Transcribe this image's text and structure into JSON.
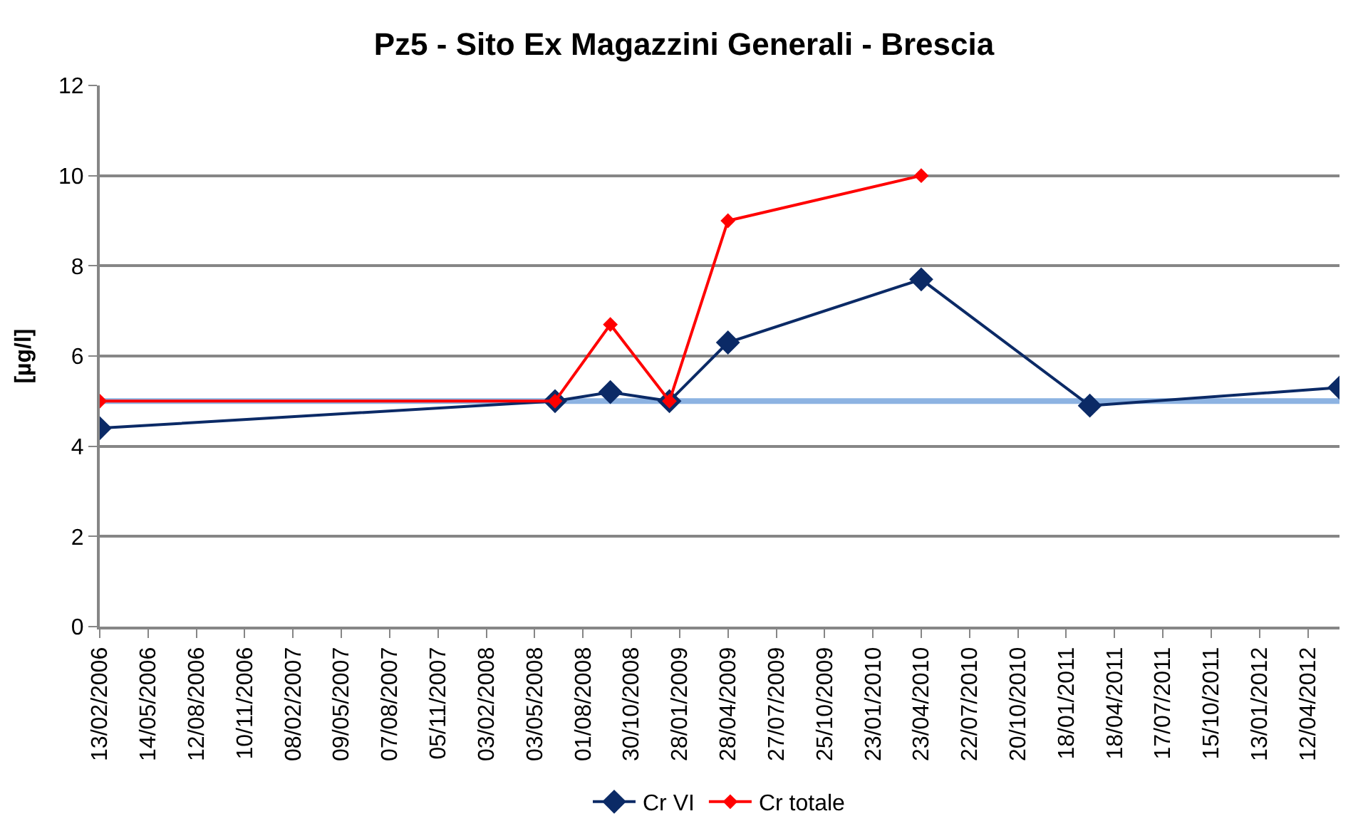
{
  "chart_data": {
    "type": "line",
    "title": "Pz5 - Sito Ex Magazzini Generali - Brescia",
    "ylabel": "[µg/l]",
    "series": [
      {
        "name": "Cr VI",
        "color": "#0b2a66",
        "x": [
          "2006-02-13",
          "2008-06-10",
          "2008-09-21",
          "2009-01-09",
          "2009-04-28",
          "2010-04-23",
          "2011-03-03",
          "2012-06-10"
        ],
        "values": [
          4.4,
          5.0,
          5.2,
          5.0,
          6.3,
          7.7,
          4.9,
          5.3
        ]
      },
      {
        "name": "Cr totale",
        "color": "#ff0000",
        "x": [
          "2006-02-13",
          "2008-06-10",
          "2008-09-21",
          "2009-01-09",
          "2009-04-28",
          "2010-04-23"
        ],
        "values": [
          5.0,
          5.0,
          6.7,
          5.0,
          9.0,
          10.0
        ]
      }
    ],
    "ref_lines": [
      {
        "axis": "y",
        "value": 5,
        "label": null,
        "color": "#8db3e2"
      }
    ],
    "ylim": [
      0,
      12
    ],
    "yticks": [
      0,
      2,
      4,
      6,
      8,
      10,
      12
    ],
    "xlim": [
      "2006-02-13",
      "2012-06-10"
    ],
    "xticks": [
      {
        "value": "2006-02-13",
        "label": "13/02/2006"
      },
      {
        "value": "2006-05-14",
        "label": "14/05/2006"
      },
      {
        "value": "2006-08-12",
        "label": "12/08/2006"
      },
      {
        "value": "2006-11-10",
        "label": "10/11/2006"
      },
      {
        "value": "2007-02-08",
        "label": "08/02/2007"
      },
      {
        "value": "2007-05-09",
        "label": "09/05/2007"
      },
      {
        "value": "2007-08-07",
        "label": "07/08/2007"
      },
      {
        "value": "2007-11-05",
        "label": "05/11/2007"
      },
      {
        "value": "2008-02-03",
        "label": "03/02/2008"
      },
      {
        "value": "2008-05-03",
        "label": "03/05/2008"
      },
      {
        "value": "2008-08-01",
        "label": "01/08/2008"
      },
      {
        "value": "2008-10-30",
        "label": "30/10/2008"
      },
      {
        "value": "2009-01-28",
        "label": "28/01/2009"
      },
      {
        "value": "2009-04-28",
        "label": "28/04/2009"
      },
      {
        "value": "2009-07-27",
        "label": "27/07/2009"
      },
      {
        "value": "2009-10-25",
        "label": "25/10/2009"
      },
      {
        "value": "2010-01-23",
        "label": "23/01/2010"
      },
      {
        "value": "2010-04-23",
        "label": "23/04/2010"
      },
      {
        "value": "2010-07-22",
        "label": "22/07/2010"
      },
      {
        "value": "2010-10-20",
        "label": "20/10/2010"
      },
      {
        "value": "2011-01-18",
        "label": "18/01/2011"
      },
      {
        "value": "2011-04-18",
        "label": "18/04/2011"
      },
      {
        "value": "2011-07-17",
        "label": "17/07/2011"
      },
      {
        "value": "2011-10-15",
        "label": "15/10/2011"
      },
      {
        "value": "2012-01-13",
        "label": "13/01/2012"
      },
      {
        "value": "2012-04-12",
        "label": "12/04/2012"
      }
    ],
    "grid": "y",
    "legend": "bottom",
    "marker": "diamond",
    "line_style": "solid"
  }
}
